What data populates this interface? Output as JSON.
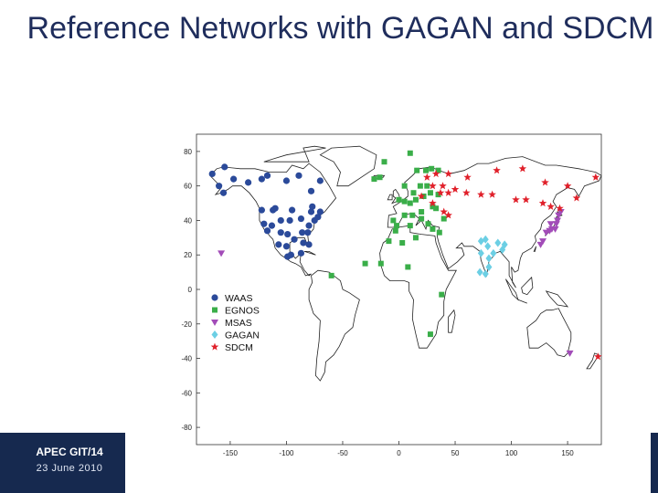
{
  "slide": {
    "title": "Reference Networks with GAGAN and SDCM",
    "footer_code": "APEC GIT/14",
    "footer_date": "23 June 2010"
  },
  "colors": {
    "title": "#1f2d5c",
    "footer_bg": "#16294f",
    "WAAS": "#2b4a9a",
    "EGNOS": "#3aae49",
    "MSAS": "#a24cb8",
    "GAGAN": "#6ccfe4",
    "SDCM": "#e0202a"
  },
  "chart_data": {
    "type": "scatter",
    "title": "",
    "xlabel": "",
    "ylabel": "",
    "xlim": [
      -180,
      180
    ],
    "ylim": [
      -90,
      90
    ],
    "xticks": [
      -150,
      -100,
      -50,
      0,
      50,
      100,
      150
    ],
    "yticks": [
      -80,
      -60,
      -40,
      -20,
      0,
      20,
      40,
      60,
      80
    ],
    "grid": false,
    "background": "world map outline",
    "legend_position": "lower-left",
    "series": [
      {
        "name": "WAAS",
        "marker": "circle",
        "color": "#2b4a9a",
        "points": [
          [
            -166,
            67
          ],
          [
            -155,
            71
          ],
          [
            -160,
            60
          ],
          [
            -156,
            56
          ],
          [
            -147,
            64
          ],
          [
            -134,
            62
          ],
          [
            -122,
            64
          ],
          [
            -117,
            66
          ],
          [
            -100,
            63
          ],
          [
            -89,
            66
          ],
          [
            -78,
            57
          ],
          [
            -70,
            63
          ],
          [
            -122,
            46
          ],
          [
            -120,
            38
          ],
          [
            -117,
            34
          ],
          [
            -113,
            37
          ],
          [
            -110,
            47
          ],
          [
            -105,
            40
          ],
          [
            -105,
            33
          ],
          [
            -99,
            32
          ],
          [
            -97,
            40
          ],
          [
            -95,
            46
          ],
          [
            -93,
            29
          ],
          [
            -87,
            41
          ],
          [
            -86,
            33
          ],
          [
            -85,
            27
          ],
          [
            -80,
            26
          ],
          [
            -81,
            33
          ],
          [
            -80,
            37
          ],
          [
            -75,
            40
          ],
          [
            -72,
            42
          ],
          [
            -70,
            45
          ],
          [
            -78,
            45
          ],
          [
            -112,
            46
          ],
          [
            -100,
            25
          ],
          [
            -107,
            26
          ],
          [
            -99,
            19
          ],
          [
            -96,
            20
          ],
          [
            -87,
            21
          ],
          [
            -77,
            48
          ]
        ]
      },
      {
        "name": "EGNOS",
        "marker": "square",
        "color": "#3aae49",
        "points": [
          [
            -17,
            65
          ],
          [
            -22,
            64
          ],
          [
            -13,
            74
          ],
          [
            10,
            79
          ],
          [
            16,
            69
          ],
          [
            24,
            69
          ],
          [
            29,
            70
          ],
          [
            35,
            69
          ],
          [
            5,
            60
          ],
          [
            13,
            56
          ],
          [
            19,
            60
          ],
          [
            25,
            60
          ],
          [
            0,
            52
          ],
          [
            5,
            51
          ],
          [
            10,
            50
          ],
          [
            15,
            52
          ],
          [
            22,
            54
          ],
          [
            28,
            56
          ],
          [
            33,
            47
          ],
          [
            -5,
            40
          ],
          [
            -2,
            37
          ],
          [
            5,
            43
          ],
          [
            12,
            43
          ],
          [
            20,
            41
          ],
          [
            26,
            38
          ],
          [
            30,
            35
          ],
          [
            36,
            33
          ],
          [
            15,
            30
          ],
          [
            10,
            37
          ],
          [
            -16,
            15
          ],
          [
            -9,
            28
          ],
          [
            -3,
            34
          ],
          [
            3,
            27
          ],
          [
            8,
            13
          ],
          [
            -30,
            15
          ],
          [
            -60,
            8
          ],
          [
            28,
            -26
          ],
          [
            38,
            -3
          ],
          [
            30,
            48
          ],
          [
            35,
            55
          ],
          [
            20,
            45
          ],
          [
            40,
            41
          ]
        ]
      },
      {
        "name": "MSAS",
        "marker": "triangle-down",
        "color": "#a24cb8",
        "points": [
          [
            -158,
            21
          ],
          [
            142,
            43
          ],
          [
            140,
            38
          ],
          [
            139,
            35
          ],
          [
            136,
            35
          ],
          [
            134,
            34
          ],
          [
            131,
            33
          ],
          [
            128,
            28
          ],
          [
            126,
            26
          ],
          [
            144,
            45
          ],
          [
            141,
            40
          ],
          [
            135,
            38
          ],
          [
            152,
            -37
          ]
        ]
      },
      {
        "name": "GAGAN",
        "marker": "diamond",
        "color": "#6ccfe4",
        "points": [
          [
            73,
            28
          ],
          [
            77,
            29
          ],
          [
            79,
            25
          ],
          [
            88,
            27
          ],
          [
            92,
            23
          ],
          [
            73,
            21
          ],
          [
            80,
            18
          ],
          [
            72,
            10
          ],
          [
            80,
            13
          ],
          [
            77,
            9
          ],
          [
            94,
            26
          ],
          [
            84,
            21
          ]
        ]
      },
      {
        "name": "SDCM",
        "marker": "star",
        "color": "#e0202a",
        "points": [
          [
            37,
            56
          ],
          [
            30,
            60
          ],
          [
            39,
            60
          ],
          [
            44,
            56
          ],
          [
            50,
            58
          ],
          [
            60,
            56
          ],
          [
            73,
            55
          ],
          [
            83,
            55
          ],
          [
            104,
            52
          ],
          [
            113,
            52
          ],
          [
            128,
            50
          ],
          [
            135,
            48
          ],
          [
            143,
            47
          ],
          [
            158,
            53
          ],
          [
            175,
            65
          ],
          [
            130,
            62
          ],
          [
            150,
            60
          ],
          [
            110,
            70
          ],
          [
            87,
            69
          ],
          [
            61,
            65
          ],
          [
            44,
            67
          ],
          [
            33,
            67
          ],
          [
            25,
            65
          ],
          [
            20,
            54
          ],
          [
            30,
            50
          ],
          [
            40,
            45
          ],
          [
            44,
            43
          ],
          [
            177,
            -39
          ]
        ]
      }
    ]
  }
}
